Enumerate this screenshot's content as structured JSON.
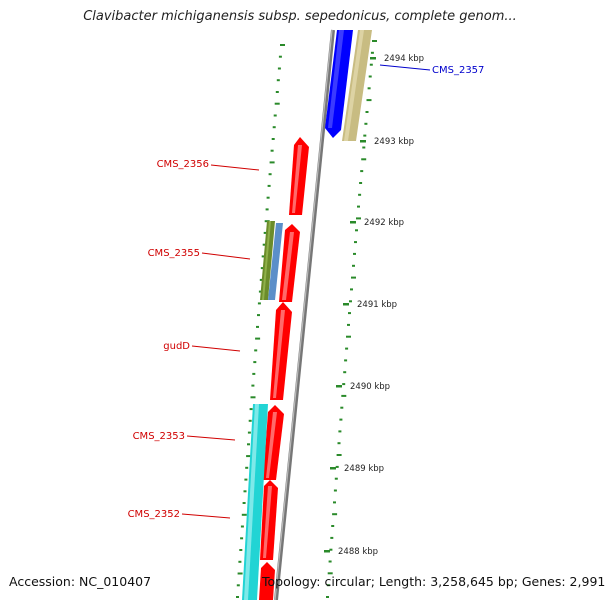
{
  "title": "Clavibacter michiganensis subsp. sepedonicus, complete genom...",
  "accession": "Accession: NC_010407",
  "topology": "Topology: circular; Length: 3,258,645 bp; Genes: 2,991",
  "colors": {
    "cds_forward": "#ff0000",
    "cds_reverse_blue": "#0000ff",
    "khaki_feature": "#c8bc82",
    "olive_feature": "#6b8c2a",
    "steelblue_feature": "#5b8fc9",
    "cyan_feature": "#22d4d4",
    "backbone": "#888888",
    "tick": "#2a8a2a"
  },
  "kbp_ticks": [
    "2494 kbp",
    "2493 kbp",
    "2492 kbp",
    "2491 kbp",
    "2490 kbp",
    "2489 kbp",
    "2488 kbp"
  ],
  "genes": [
    {
      "name": "CMS_2357",
      "strand": "forward-outer",
      "color": "blue"
    },
    {
      "name": "CMS_2356",
      "strand": "reverse",
      "color": "red"
    },
    {
      "name": "CMS_2355",
      "strand": "reverse",
      "color": "red"
    },
    {
      "name": "gudD",
      "strand": "reverse",
      "color": "red"
    },
    {
      "name": "CMS_2353",
      "strand": "reverse",
      "color": "red"
    },
    {
      "name": "CMS_2352",
      "strand": "reverse",
      "color": "red"
    }
  ]
}
